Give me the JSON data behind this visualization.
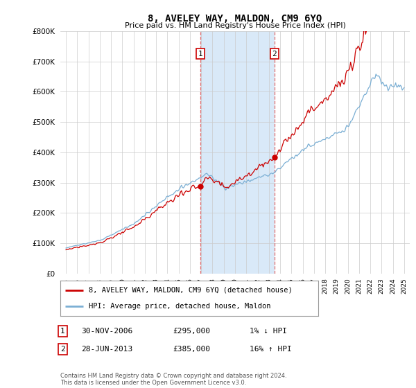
{
  "title": "8, AVELEY WAY, MALDON, CM9 6YQ",
  "subtitle": "Price paid vs. HM Land Registry's House Price Index (HPI)",
  "property_label": "8, AVELEY WAY, MALDON, CM9 6YQ (detached house)",
  "hpi_label": "HPI: Average price, detached house, Maldon",
  "property_color": "#cc0000",
  "hpi_color": "#7bafd4",
  "purchase1_year": 2006.917,
  "purchase1_price": 295000,
  "purchase1_date": "30-NOV-2006",
  "purchase1_note": "1% ↓ HPI",
  "purchase2_year": 2013.5,
  "purchase2_price": 385000,
  "purchase2_date": "28-JUN-2013",
  "purchase2_note": "16% ↑ HPI",
  "ylim": [
    0,
    800000
  ],
  "xlim_start": 1994.5,
  "xlim_end": 2025.5,
  "shade_color": "#d0e4f7",
  "grid_color": "#cccccc",
  "dashed_color": "#e06060",
  "footnote": "Contains HM Land Registry data © Crown copyright and database right 2024.\nThis data is licensed under the Open Government Licence v3.0."
}
